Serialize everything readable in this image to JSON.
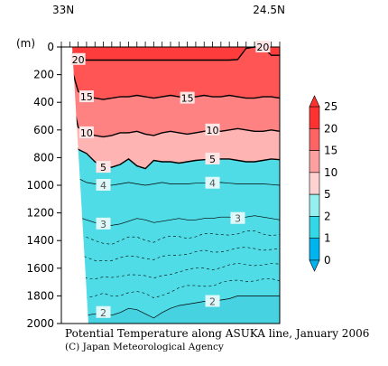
{
  "chart_data": {
    "type": "heatmap",
    "title": "Potential Temperature along ASUKA line, January 2006",
    "credit": "(C) Japan Meteorological Agency",
    "ylabel": "(m)",
    "x_end_labels": [
      "33N",
      "24.5N"
    ],
    "ylim": [
      0,
      2000
    ],
    "y_inverted": true,
    "y_ticks": [
      0,
      200,
      400,
      600,
      800,
      1000,
      1200,
      1400,
      1600,
      1800,
      2000
    ],
    "colorbar": {
      "levels": [
        0,
        1,
        2,
        5,
        10,
        15,
        20,
        25
      ],
      "labels": [
        "0",
        "1",
        "2",
        "5",
        "10",
        "15",
        "20",
        "25"
      ],
      "colors": [
        "#00b4f0",
        "#32d8e6",
        "#96f0f0",
        "#ffd2d2",
        "#ffa0a0",
        "#ff6464",
        "#ff3232"
      ]
    },
    "bands": [
      {
        "name": "2-5",
        "color": "#50dce6"
      },
      {
        "name": "5-10",
        "color": "#ffb4b4"
      },
      {
        "name": "10-15",
        "color": "#ff8282"
      },
      {
        "name": "15-20",
        "color": "#ff5555"
      },
      {
        "name": ">20",
        "color": "#ff3c3c"
      }
    ],
    "contours": [
      {
        "value": 20,
        "label": "20",
        "depths": [
          0,
          20,
          90,
          95,
          95,
          95,
          95,
          95,
          95,
          95,
          95,
          95,
          95,
          95,
          95,
          95,
          95,
          95,
          95,
          95,
          95,
          90,
          10,
          0,
          0,
          60,
          60
        ]
      },
      {
        "value": 15,
        "label": "15",
        "depths": [
          0,
          110,
          320,
          360,
          370,
          380,
          370,
          360,
          360,
          350,
          360,
          370,
          360,
          350,
          360,
          370,
          360,
          350,
          360,
          360,
          350,
          360,
          370,
          370,
          360,
          360,
          370
        ]
      },
      {
        "value": 10,
        "label": "10",
        "depths": [
          0,
          300,
          580,
          620,
          640,
          650,
          640,
          620,
          620,
          610,
          630,
          640,
          620,
          610,
          620,
          630,
          620,
          610,
          600,
          610,
          600,
          590,
          600,
          610,
          610,
          600,
          610
        ]
      },
      {
        "value": 5,
        "label": "5",
        "depths": [
          0,
          600,
          740,
          770,
          830,
          870,
          870,
          850,
          810,
          860,
          880,
          820,
          830,
          830,
          840,
          830,
          820,
          815,
          810,
          810,
          810,
          820,
          830,
          830,
          820,
          810,
          815
        ]
      },
      {
        "value": 4,
        "label": "4",
        "depths": [
          0,
          900,
          950,
          980,
          990,
          1000,
          1000,
          990,
          980,
          990,
          1000,
          990,
          980,
          990,
          990,
          990,
          985,
          985,
          985,
          980,
          985,
          990,
          990,
          990,
          990,
          995,
          1000
        ]
      },
      {
        "value": 3,
        "label": "3",
        "depths": [
          0,
          1180,
          1230,
          1250,
          1270,
          1280,
          1290,
          1280,
          1260,
          1240,
          1250,
          1270,
          1260,
          1250,
          1240,
          1250,
          1250,
          1240,
          1240,
          1230,
          1230,
          1240,
          1230,
          1220,
          1230,
          1240,
          1250
        ]
      },
      {
        "value": 2,
        "label": "2",
        "depths": [
          0,
          1900,
          1930,
          1940,
          1930,
          1920,
          1940,
          1920,
          1890,
          1900,
          1930,
          1960,
          1920,
          1890,
          1870,
          1860,
          1850,
          1840,
          1840,
          1830,
          1820,
          1800,
          1800,
          1800,
          1800,
          1800,
          1800
        ]
      }
    ]
  }
}
